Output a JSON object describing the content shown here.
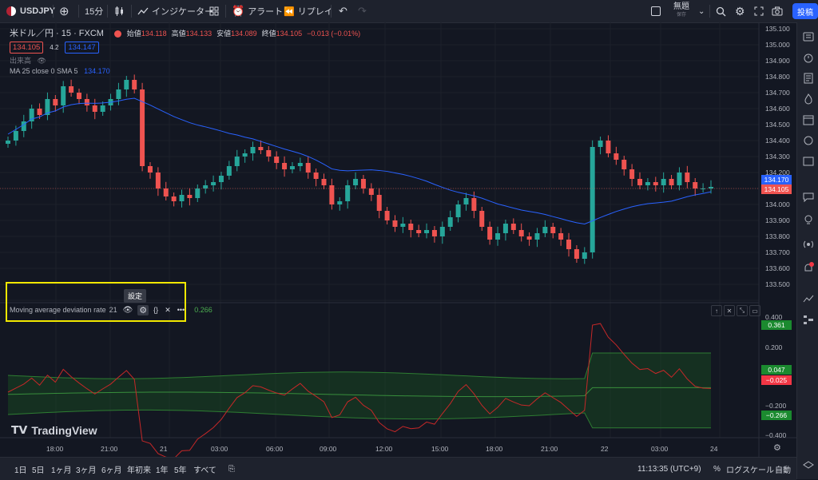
{
  "topbar": {
    "symbol": "USDJPY",
    "interval": "15分",
    "indicators_label": "インジケーター",
    "alert_label": "アラート",
    "replay_label": "リプレイ",
    "layout_name": "無題",
    "layout_status": "保存",
    "post_label": "投稿"
  },
  "legend": {
    "title": "米ドル／円 · 15 · FXCM",
    "open_label": "始値",
    "open": "134.118",
    "high_label": "高値",
    "high": "134.133",
    "low_label": "安値",
    "low": "134.089",
    "close_label": "終値",
    "close": "134.105",
    "change": "−0.013 (−0.01%)",
    "bid": "134.105",
    "spread": "4.2",
    "ask": "134.147",
    "volume_label": "出来高",
    "ma_label": "MA 25 close 0 SMA 5",
    "ma_value": "134.170"
  },
  "indicator": {
    "name": "Moving average deviation rate",
    "param": "21",
    "value": "0.266",
    "tooltip": "設定"
  },
  "price_axis": {
    "labels": [
      "135.100",
      "135.000",
      "134.900",
      "134.800",
      "134.700",
      "134.600",
      "134.500",
      "134.400",
      "134.300",
      "134.200",
      "134.000",
      "133.900",
      "133.800",
      "133.700",
      "133.600",
      "133.500"
    ],
    "ma_tag": "134.170",
    "price_tag": "134.105"
  },
  "indicator_axis": {
    "labels": [
      "0.400",
      "0.200",
      "−0.200",
      "−0.400"
    ],
    "tag_upper": "0.361",
    "tag_mid": "0.047",
    "tag_value": "−0.025",
    "tag_lower": "−0.266"
  },
  "time_axis": [
    "18:00",
    "21:00",
    "21",
    "03:00",
    "06:00",
    "09:00",
    "12:00",
    "15:00",
    "18:00",
    "21:00",
    "22",
    "03:00",
    "24"
  ],
  "watermark": "TradingView",
  "bottombar": {
    "ranges": [
      "1日",
      "5日",
      "1ヶ月",
      "3ヶ月",
      "6ヶ月",
      "年初来",
      "1年",
      "5年",
      "すべて"
    ],
    "time": "11:13:35 (UTC+9)",
    "percent": "%",
    "log_scale": "ログスケール",
    "auto": "自動"
  },
  "colors": {
    "up": "#26a69a",
    "down": "#ef5350",
    "ma": "#2962ff",
    "highlight": "#f2e800",
    "band": "#1b5e20"
  },
  "chart_data": {
    "type": "candlestick",
    "ylim": [
      133.45,
      135.12
    ],
    "closes": [
      134.4,
      134.46,
      134.52,
      134.6,
      134.56,
      134.66,
      134.62,
      134.74,
      134.7,
      134.66,
      134.62,
      134.58,
      134.62,
      134.66,
      134.72,
      134.78,
      134.72,
      134.24,
      134.2,
      134.1,
      134.05,
      134.02,
      134.06,
      134.04,
      134.1,
      134.12,
      134.14,
      134.18,
      134.24,
      134.3,
      134.32,
      134.36,
      134.34,
      134.3,
      134.26,
      134.22,
      134.24,
      134.26,
      134.2,
      134.16,
      134.12,
      134.0,
      134.02,
      134.12,
      134.16,
      134.1,
      134.06,
      133.96,
      133.9,
      133.86,
      133.88,
      133.84,
      133.82,
      133.84,
      133.8,
      133.86,
      133.92,
      134.0,
      134.04,
      133.96,
      133.86,
      133.78,
      133.82,
      133.88,
      133.84,
      133.8,
      133.78,
      133.82,
      133.86,
      133.82,
      133.78,
      133.72,
      133.66,
      133.7,
      134.36,
      134.4,
      134.32,
      134.28,
      134.22,
      134.16,
      134.12,
      134.14,
      134.12,
      134.16,
      134.12,
      134.2,
      134.14,
      134.1,
      134.1,
      134.11
    ]
  }
}
